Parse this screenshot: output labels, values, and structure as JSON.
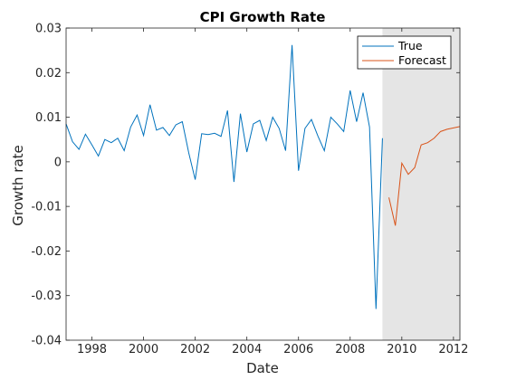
{
  "chart_data": {
    "type": "line",
    "title": "CPI Growth Rate",
    "xlabel": "Date",
    "ylabel": "Growth rate",
    "xlim": [
      1997.0,
      2012.25
    ],
    "ylim": [
      -0.04,
      0.03
    ],
    "xticks": [
      1998,
      2000,
      2002,
      2004,
      2006,
      2008,
      2010,
      2012
    ],
    "yticks": [
      0.03,
      0.02,
      0.01,
      0,
      -0.01,
      -0.02,
      -0.03,
      -0.04
    ],
    "ytick_labels": [
      "0.03",
      "0.02",
      "0.01",
      "0",
      "-0.01",
      "-0.02",
      "-0.03",
      "-0.04"
    ],
    "grid": false,
    "legend_position": "top-right",
    "forecast_region": {
      "x_start": 2009.25,
      "x_end": 2012.25,
      "color": "#e5e5e5"
    },
    "series": [
      {
        "name": "True",
        "color": "#0072bd",
        "x": [
          1997.0,
          1997.25,
          1997.5,
          1997.75,
          1998.0,
          1998.25,
          1998.5,
          1998.75,
          1999.0,
          1999.25,
          1999.5,
          1999.75,
          2000.0,
          2000.25,
          2000.5,
          2000.75,
          2001.0,
          2001.25,
          2001.5,
          2001.75,
          2002.0,
          2002.25,
          2002.5,
          2002.75,
          2003.0,
          2003.25,
          2003.5,
          2003.75,
          2004.0,
          2004.25,
          2004.5,
          2004.75,
          2005.0,
          2005.25,
          2005.5,
          2005.75,
          2006.0,
          2006.25,
          2006.5,
          2006.75,
          2007.0,
          2007.25,
          2007.5,
          2007.75,
          2008.0,
          2008.25,
          2008.5,
          2008.75,
          2009.0,
          2009.25
        ],
        "values": [
          0.0085,
          0.0045,
          0.0028,
          0.0062,
          0.0038,
          0.0013,
          0.005,
          0.0043,
          0.0053,
          0.0025,
          0.0078,
          0.0105,
          0.0059,
          0.0128,
          0.0071,
          0.0077,
          0.0059,
          0.0083,
          0.009,
          0.002,
          -0.004,
          0.0063,
          0.0061,
          0.0064,
          0.0057,
          0.0115,
          -0.0045,
          0.0108,
          0.0022,
          0.0085,
          0.0093,
          0.0048,
          0.01,
          0.0075,
          0.0025,
          0.0262,
          -0.002,
          0.0075,
          0.0095,
          0.0058,
          0.0025,
          0.01,
          0.0085,
          0.0068,
          0.016,
          0.009,
          0.0155,
          0.0078,
          -0.033,
          0.0053
        ]
      },
      {
        "name": "Forecast",
        "color": "#d95319",
        "x": [
          2009.5,
          2009.75,
          2010.0,
          2010.25,
          2010.5,
          2010.75,
          2011.0,
          2011.25,
          2011.5,
          2011.75,
          2012.0,
          2012.25
        ],
        "values": [
          -0.008,
          -0.0143,
          -0.0003,
          -0.0028,
          -0.0013,
          0.0038,
          0.0043,
          0.0053,
          0.0068,
          0.0073,
          0.0076,
          0.0079
        ]
      }
    ]
  }
}
